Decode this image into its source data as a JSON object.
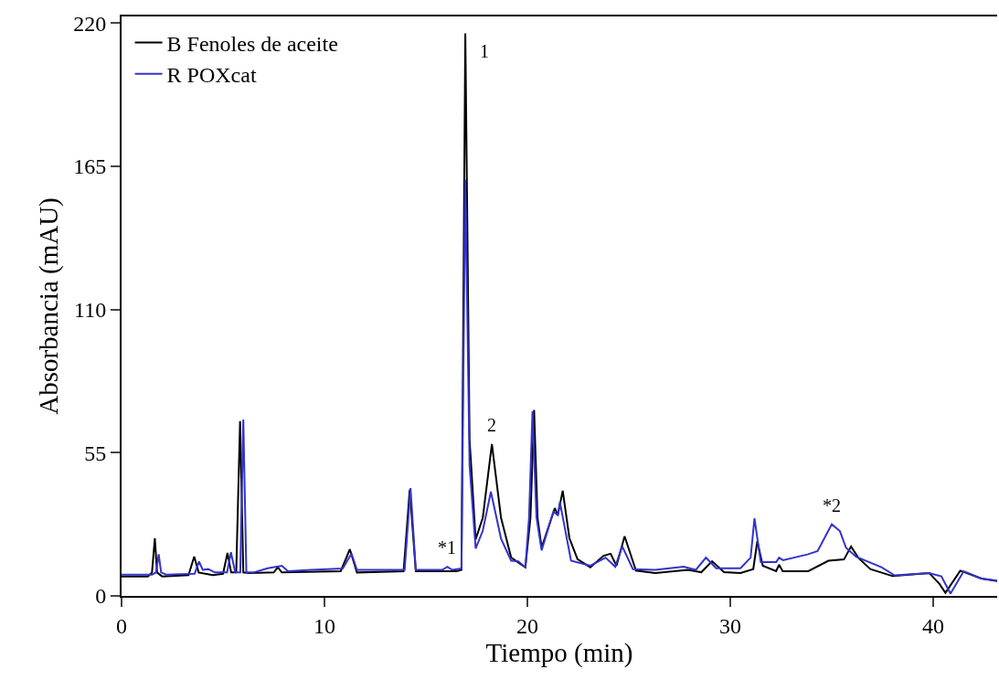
{
  "chart_data": {
    "type": "line",
    "xlabel": "Tiempo (min)",
    "ylabel": "Absorbancia (mAU)",
    "xlim": [
      0,
      43.15
    ],
    "xticks": [
      0,
      10,
      20,
      30,
      40
    ],
    "ylim": [
      0,
      222.5
    ],
    "yticks": [
      0,
      55,
      110,
      165,
      220
    ],
    "legend": "top left",
    "marker": "none",
    "line_style": "solid",
    "series": [
      {
        "name": "B Fenoles de aceite",
        "color": "#000000",
        "x": [
          0,
          1.3,
          1.5,
          1.64,
          1.75,
          2.0,
          3.3,
          3.58,
          3.8,
          4.5,
          5.0,
          5.22,
          5.4,
          5.65,
          5.84,
          6.0,
          6.3,
          7.5,
          7.7,
          7.9,
          10.8,
          11.25,
          11.6,
          13.9,
          14.2,
          14.5,
          16.5,
          16.75,
          16.94,
          17.15,
          17.45,
          17.8,
          18.25,
          18.7,
          19.2,
          19.9,
          20.15,
          20.33,
          20.5,
          20.7,
          21.35,
          21.5,
          21.74,
          22.07,
          22.47,
          23.1,
          23.75,
          24.1,
          24.39,
          24.79,
          25.35,
          26.3,
          27.9,
          28.57,
          29.1,
          29.69,
          30.5,
          31.13,
          31.33,
          31.6,
          32.26,
          32.4,
          32.58,
          33.84,
          34.83,
          35.6,
          35.95,
          36.3,
          36.9,
          38.0,
          39.8,
          40.3,
          40.6,
          41.33,
          42.37,
          43.15
        ],
        "values": [
          7.5,
          7.5,
          9,
          22.2,
          9,
          7.5,
          8,
          15.1,
          9,
          8,
          8.5,
          16.5,
          9,
          9,
          67.1,
          9,
          8.8,
          9,
          11,
          9,
          9.5,
          17.9,
          9,
          9.5,
          40.8,
          9.5,
          9.5,
          10,
          216,
          60,
          21.7,
          30,
          58.3,
          30,
          14.7,
          11,
          30,
          71.4,
          30,
          18.6,
          33.7,
          31,
          40.4,
          22.2,
          14.1,
          11,
          15.4,
          16.2,
          11.6,
          22.9,
          9.7,
          8.8,
          10,
          9.1,
          13.3,
          9.1,
          8.8,
          10.3,
          21,
          11.6,
          9.5,
          12,
          9.5,
          9.5,
          13.5,
          14,
          19,
          14.7,
          10.3,
          7.6,
          8.8,
          4.7,
          1.2,
          9.7,
          6.7,
          5.7
        ]
      },
      {
        "name": "R POXcat",
        "color": "#3333cc",
        "x": [
          0,
          1.5,
          1.7,
          1.83,
          1.95,
          2.2,
          3.6,
          3.82,
          4.0,
          4.27,
          4.6,
          5.2,
          5.39,
          5.6,
          5.85,
          6.0,
          6.15,
          6.5,
          7.2,
          7.9,
          8.2,
          9.35,
          10.9,
          11.33,
          11.6,
          13.0,
          13.95,
          14.24,
          14.5,
          15.8,
          16.05,
          16.3,
          16.75,
          16.94,
          17.15,
          17.45,
          17.8,
          18.2,
          18.7,
          19.2,
          19.55,
          19.9,
          20.08,
          20.25,
          20.45,
          20.7,
          21.28,
          21.5,
          21.6,
          22.15,
          23.1,
          23.85,
          24.33,
          24.67,
          25.2,
          26.3,
          27.7,
          28.3,
          28.8,
          29.3,
          30.5,
          31.0,
          31.19,
          31.5,
          32.26,
          32.4,
          32.6,
          33.84,
          34.3,
          35.0,
          35.4,
          35.7,
          36.2,
          37.45,
          38.1,
          39.8,
          40.4,
          40.85,
          41.5,
          42.37,
          43.15
        ],
        "values": [
          8.2,
          8.2,
          9,
          16,
          9,
          8.2,
          8.5,
          13.2,
          10,
          10.3,
          9,
          9,
          16.8,
          9,
          9,
          67.7,
          9,
          9,
          10.6,
          11.6,
          9.5,
          10,
          10.5,
          16.2,
          10,
          10,
          10,
          41.4,
          10,
          10,
          11.2,
          10,
          10.5,
          159.8,
          50,
          18.2,
          25,
          40,
          22,
          13.5,
          13.3,
          11,
          30,
          70.9,
          30,
          17.5,
          32.3,
          31,
          36.1,
          13.5,
          11.6,
          14.7,
          11.2,
          19.1,
          10.3,
          10,
          11.2,
          10,
          14.7,
          10.6,
          10.6,
          14.7,
          29.8,
          13,
          13,
          14.7,
          13.7,
          16,
          17.2,
          27.5,
          24.9,
          18.5,
          15,
          11,
          7.9,
          8.8,
          7.5,
          0.9,
          9.5,
          6.7,
          5.9
        ]
      }
    ],
    "annotations": [
      {
        "text": "1",
        "x": 16.94,
        "y": 216
      },
      {
        "text": "2",
        "x": 18.25,
        "y": 58.3
      },
      {
        "text": "*1",
        "x": 16.05,
        "y": 11.2
      },
      {
        "text": "*2",
        "x": 35.0,
        "y": 27.5
      }
    ]
  }
}
